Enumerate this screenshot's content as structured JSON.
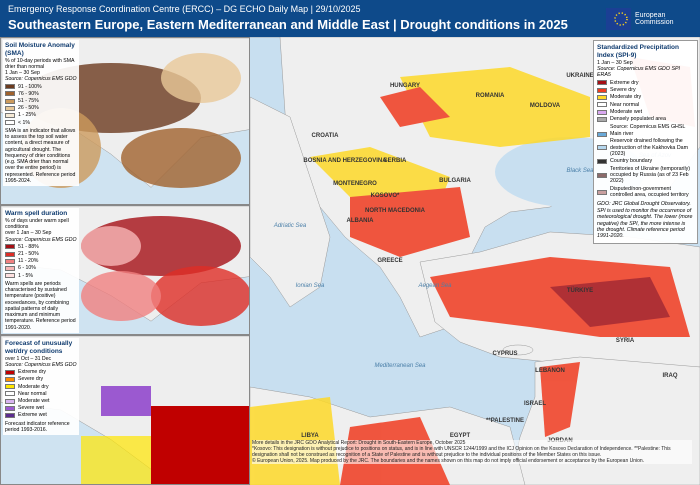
{
  "header": {
    "org": "Emergency Response Coordination Centre (ERCC) – DG ECHO Daily Map | 29/10/2025",
    "title": "Southeastern Europe, Eastern Mediterranean and Middle East | Drought conditions in 2025",
    "logo": "European Commission"
  },
  "panels": [
    {
      "title": "Soil Moisture Anomaly (SMA)",
      "desc": "% of 10-day periods with SMA drier than normal",
      "period": "1 Jan – 30 Sep",
      "source": "Source: Copernicus EMS GDO",
      "items": [
        {
          "label": "91 - 100%",
          "color": "#6b3a1e"
        },
        {
          "label": "76 - 90%",
          "color": "#a0622d"
        },
        {
          "label": "51 - 75%",
          "color": "#cc9a5c"
        },
        {
          "label": "26 - 50%",
          "color": "#e8c898"
        },
        {
          "label": "1 - 25%",
          "color": "#f6ead6"
        },
        {
          "label": "< 1%",
          "color": "#ffffff"
        }
      ],
      "note": "SMA is an indicator that allows to assess the top soil water content, a direct measure of agricultural drought. The frequency of drier conditions (e.g. SMA drier than normal over the entire period) is represented. Reference period 1995-2024."
    },
    {
      "title": "Warm spell duration",
      "desc": "% of days under warm spell conditions",
      "period": "over 1 Jan – 30 Sep",
      "source": "Source: Copernicus EMS GDO",
      "items": [
        {
          "label": "51 - 88%",
          "color": "#a50f15"
        },
        {
          "label": "21 - 50%",
          "color": "#de2d26"
        },
        {
          "label": "11 - 20%",
          "color": "#f08080"
        },
        {
          "label": "6 - 10%",
          "color": "#f7b6b6"
        },
        {
          "label": "1 - 5%",
          "color": "#fde0e0"
        }
      ],
      "note": "Warm spells are periods characterised by sustained temperature (positive) exceedances, by combining spatial patterns of daily maximum and minimum temperature. Reference period 1991-2020."
    },
    {
      "title": "Forecast of unusually wet/dry conditions",
      "desc": "over 1 Oct – 31 Dec",
      "period": "",
      "source": "Source: Copernicus EMS GDO",
      "items": [
        {
          "label": "Extreme dry",
          "color": "#c00000"
        },
        {
          "label": "Severe dry",
          "color": "#ff8c00"
        },
        {
          "label": "Moderate dry",
          "color": "#ffe600"
        },
        {
          "label": "Near normal",
          "color": "#ffffff"
        },
        {
          "label": "Moderate wet",
          "color": "#d8b4f0"
        },
        {
          "label": "Severe wet",
          "color": "#9b59d0"
        },
        {
          "label": "Extreme wet",
          "color": "#5b2c8f"
        }
      ],
      "note": "Forecast indicator reference period 1993-2016."
    }
  ],
  "legend": {
    "title": "Standardized Precipitation Index (SPI-9)",
    "period": "1 Jan – 30 Sep",
    "source": "Source: Copernicus EMS GDO SPI ERA5",
    "items": [
      {
        "label": "Extreme dry",
        "color": "#a50f15"
      },
      {
        "label": "Severe dry",
        "color": "#f03b20"
      },
      {
        "label": "Moderate dry",
        "color": "#fed929"
      },
      {
        "label": "Near normal",
        "color": "#ffffff"
      },
      {
        "label": "Moderate wet",
        "color": "#d9a8f0"
      }
    ],
    "other": [
      "Densely populated area",
      "Source: Copernicus EMS GHSL",
      "Main river",
      "Reservoir drained following the destruction of the Kakhovka Dam (2023)",
      "Country boundary",
      "Territories of Ukraine (temporarily) occupied by Russia (as of 23 Feb 2022)",
      "Disputed/non-government controlled area, occupied territory"
    ],
    "note": "GDO: JRC Global Drought Observatory. SPI is used to monitor the occurrence of meteorological drought. The lower (more negative) the SPI, the more intense is the drought. Climate reference period 1991-2020."
  },
  "map_labels": [
    "UKRAINE",
    "MOLDOVA",
    "ROMANIA",
    "HUNGARY",
    "CROATIA",
    "BOSNIA AND HERZEGOVINA",
    "SERBIA",
    "MONTENEGRO",
    "KOSOVO*",
    "NORTH MACEDONIA",
    "ALBANIA",
    "BULGARIA",
    "GREECE",
    "TÜRKIYE",
    "CYPRUS",
    "SYRIA",
    "LEBANON",
    "ISRAEL",
    "**PALESTINE",
    "JORDAN",
    "EGYPT",
    "LIBYA",
    "IRAQ",
    "Black Sea",
    "Sea of Azov",
    "Adriatic Sea",
    "Ionian Sea",
    "Aegean Sea",
    "Mediterranean Sea"
  ],
  "footer": {
    "report": "More details in the JRC GDO Analytical Report: Drought in South-Eastern Europe, October 2025",
    "disclaimer": "*Kosovo: This designation is without prejudice to positions on status, and is in line with UNSCR 1244/1999 and the ICJ Opinion on the Kosovo Declaration of Independence. **Palestine: This designation shall not be construed as recognition of a State of Palestine and is without prejudice to the individual positions of the Member States on this issue.",
    "copyright": "© European Union, 2025. Map produced by the JRC. The boundaries and the names shown on this map do not imply official endorsement or acceptance by the European Union."
  }
}
